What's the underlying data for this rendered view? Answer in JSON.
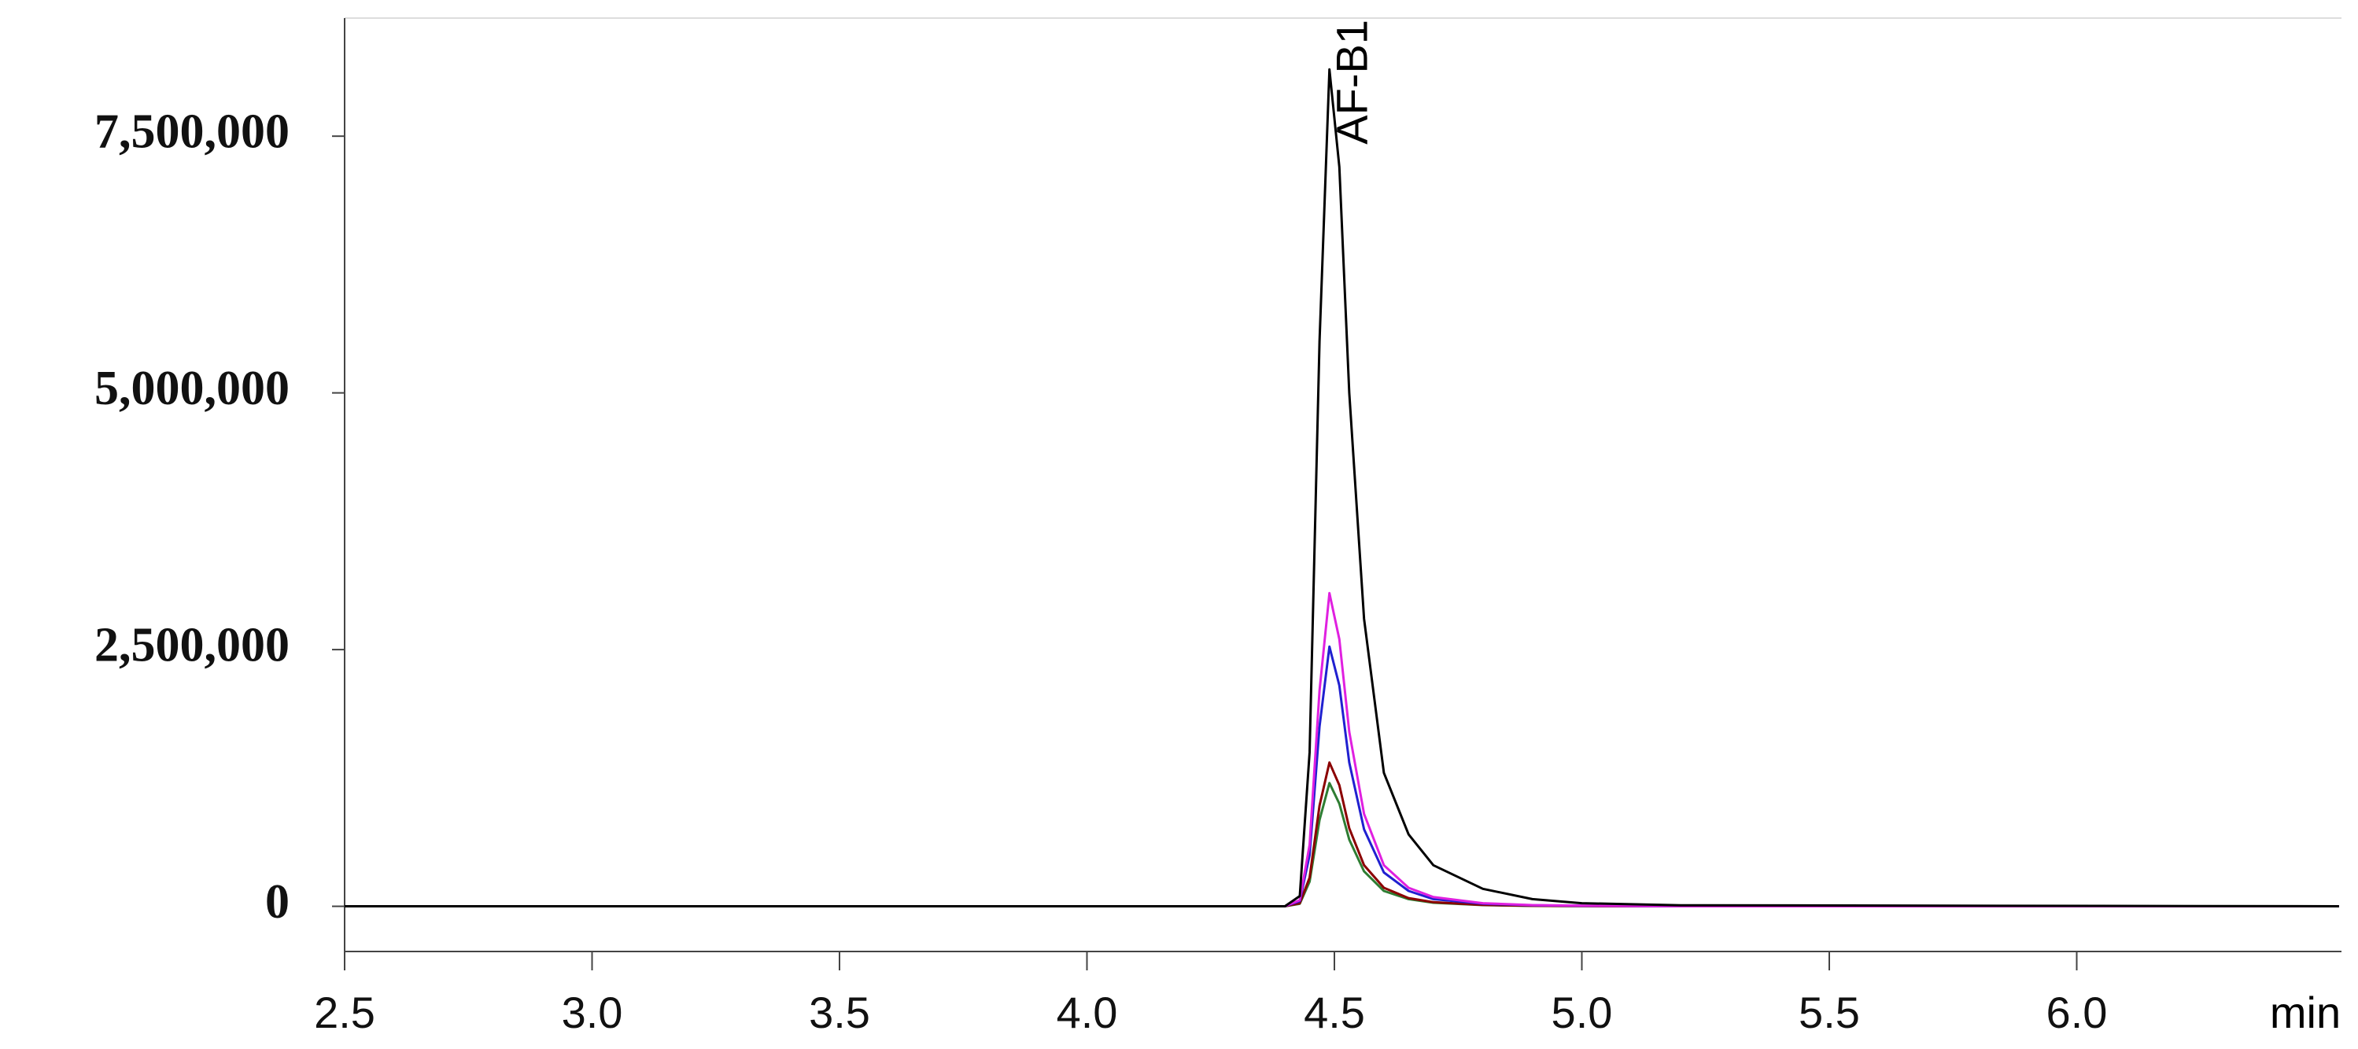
{
  "chart_data": {
    "type": "line",
    "x": [
      2.5,
      4.4,
      4.43,
      4.45,
      4.47,
      4.49,
      4.51,
      4.53,
      4.56,
      4.6,
      4.65,
      4.7,
      4.8,
      4.9,
      5.0,
      5.2,
      6.53
    ],
    "series": [
      {
        "color": "#2e7d32",
        "values": [
          0,
          0,
          25000,
          240000,
          840000,
          1200000,
          1000000,
          650000,
          340000,
          150000,
          70000,
          35000,
          12000,
          4000,
          2000,
          0,
          0
        ]
      },
      {
        "color": "#8b0000",
        "values": [
          0,
          0,
          30000,
          280000,
          980000,
          1400000,
          1180000,
          760000,
          400000,
          180000,
          80000,
          40000,
          14000,
          5000,
          2000,
          0,
          0
        ]
      },
      {
        "color": "#2020d0",
        "values": [
          0,
          0,
          50000,
          500000,
          1750000,
          2530000,
          2150000,
          1400000,
          750000,
          330000,
          150000,
          70000,
          25000,
          10000,
          5000,
          0,
          0
        ]
      },
      {
        "color": "#e020e0",
        "values": [
          0,
          0,
          60000,
          600000,
          2100000,
          3050000,
          2600000,
          1700000,
          900000,
          400000,
          180000,
          90000,
          30000,
          12000,
          6000,
          0,
          0
        ]
      },
      {
        "color": "#000000",
        "values": [
          0,
          0,
          100000,
          1500000,
          5500000,
          8150000,
          7200000,
          5000000,
          2800000,
          1300000,
          700000,
          400000,
          170000,
          70000,
          30000,
          10000,
          0
        ]
      }
    ],
    "annotation": "AF-B1",
    "x_label": "min",
    "xlim": [
      2.5,
      6.535
    ],
    "xticks": [
      2.5,
      {
        "value": 3,
        "label": "3.0"
      },
      3.5,
      {
        "value": 4,
        "label": "4.0"
      },
      4.5,
      {
        "value": 5,
        "label": "5.0"
      },
      5.5,
      {
        "value": 6,
        "label": "6.0"
      }
    ],
    "ylim": [
      -440000,
      8650000
    ],
    "yticks": [
      0,
      {
        "value": 2500000,
        "label": "2,500,000"
      },
      {
        "value": 5000000,
        "label": "5,000,000"
      },
      {
        "value": 7500000,
        "label": "7,500,000"
      }
    ]
  }
}
